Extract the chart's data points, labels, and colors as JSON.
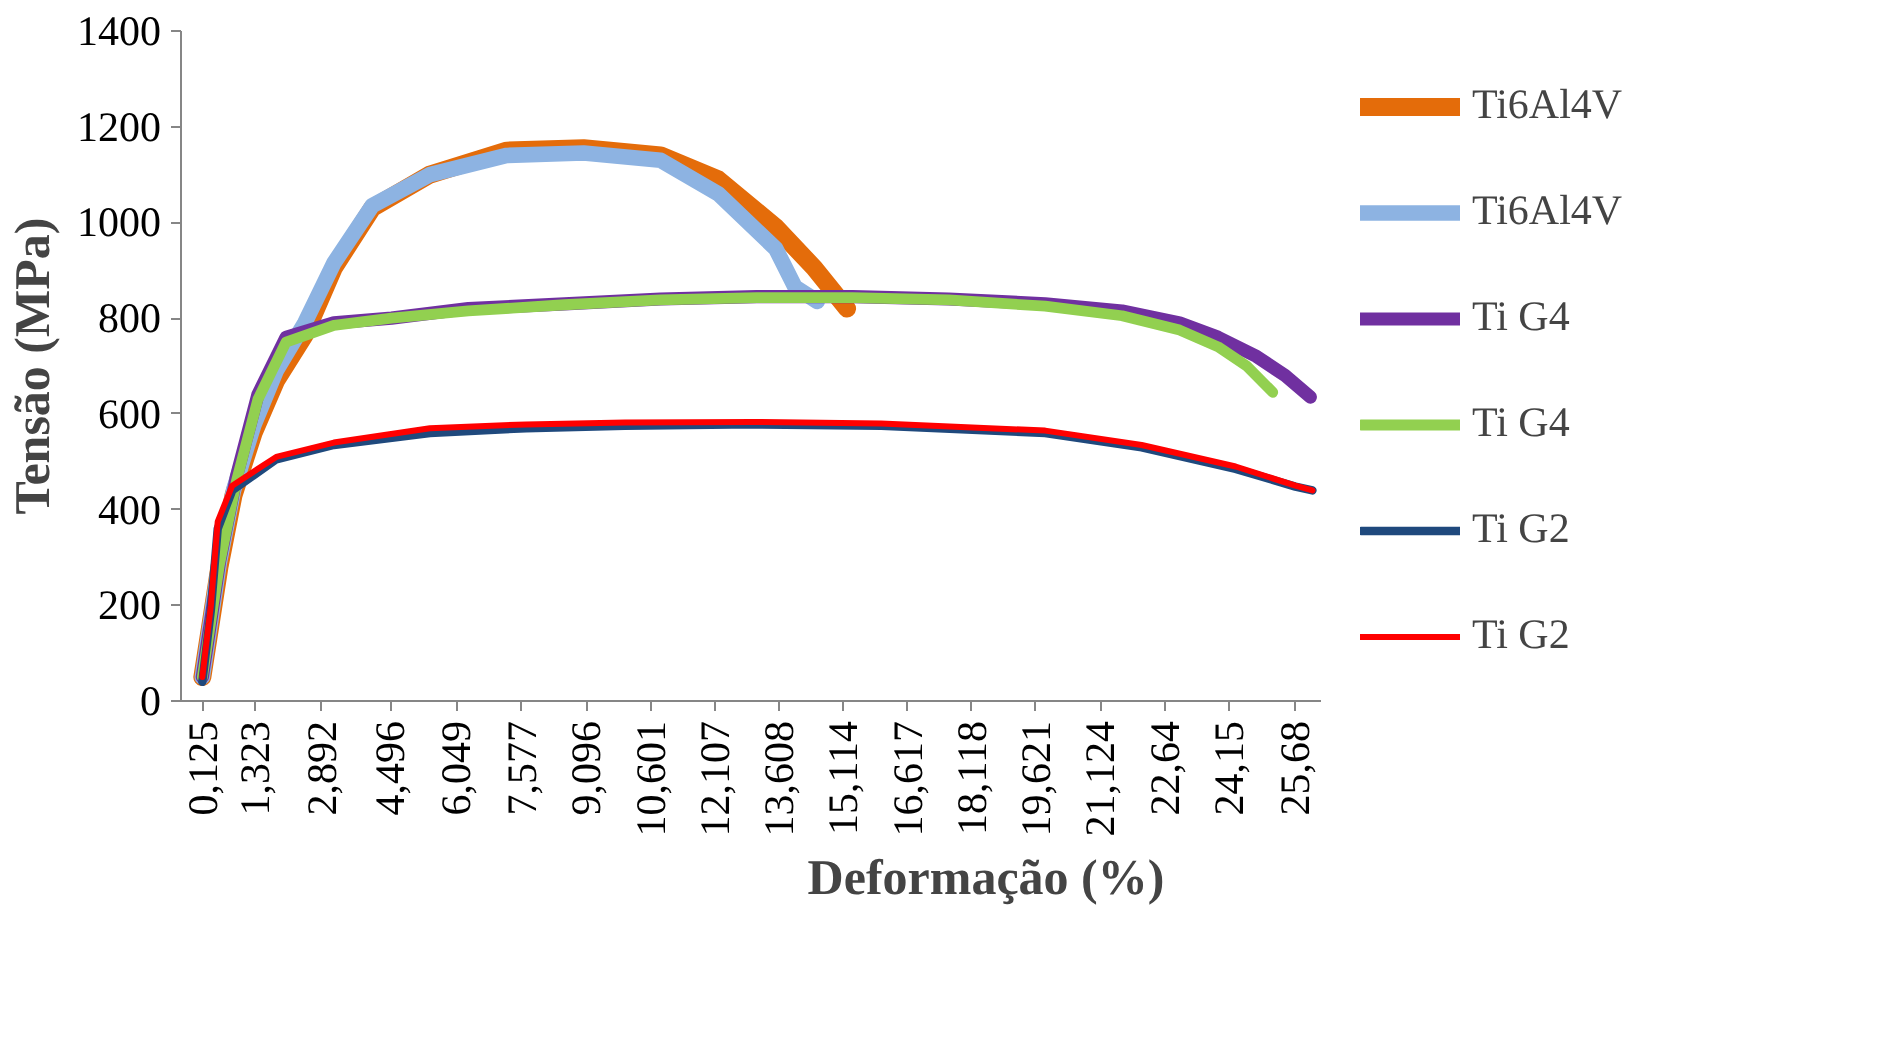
{
  "chart_data": {
    "type": "line",
    "xlabel": "Deformação (%)",
    "ylabel": "Tensão (MPa)",
    "xlim": [
      -0.4,
      26.3
    ],
    "ylim": [
      0,
      1400
    ],
    "xticks": [
      {
        "value": 0.125,
        "label": "0,125"
      },
      {
        "value": 1.323,
        "label": "1,323"
      },
      {
        "value": 2.892,
        "label": "2,892"
      },
      {
        "value": 4.496,
        "label": "4,496"
      },
      {
        "value": 6.049,
        "label": "6,049"
      },
      {
        "value": 7.577,
        "label": "7,577"
      },
      {
        "value": 9.096,
        "label": "9,096"
      },
      {
        "value": 10.601,
        "label": "10,601"
      },
      {
        "value": 12.107,
        "label": "12,107"
      },
      {
        "value": 13.608,
        "label": "13,608"
      },
      {
        "value": 15.114,
        "label": "15,114"
      },
      {
        "value": 16.617,
        "label": "16,617"
      },
      {
        "value": 18.118,
        "label": "18,118"
      },
      {
        "value": 19.621,
        "label": "19,621"
      },
      {
        "value": 21.124,
        "label": "21,124"
      },
      {
        "value": 22.64,
        "label": "22,64"
      },
      {
        "value": 24.15,
        "label": "24,15"
      },
      {
        "value": 25.68,
        "label": "25,68"
      }
    ],
    "yticks": [
      0,
      200,
      400,
      600,
      800,
      1000,
      1200,
      1400
    ],
    "grid": false,
    "legend": "right",
    "marker": "none",
    "line_style": "solid",
    "series": [
      {
        "name": "Ti6Al4V",
        "color": "#e46c0a",
        "x": [
          0.1,
          0.5,
          0.83,
          1.3,
          1.83,
          2.5,
          3.18,
          4.08,
          5.43,
          7.23,
          9.03,
          10.83,
          12.18,
          13.53,
          14.43,
          15.2
        ],
        "values": [
          50,
          280,
          430,
          560,
          670,
          765,
          905,
          1030,
          1100,
          1150,
          1155,
          1140,
          1090,
          990,
          905,
          820
        ]
      },
      {
        "name": "Ti6Al4V",
        "color": "#8db3e2",
        "x": [
          0.1,
          0.5,
          0.83,
          1.3,
          1.83,
          2.5,
          3.18,
          4.08,
          5.43,
          7.23,
          9.03,
          10.83,
          12.18,
          13.53,
          13.98,
          14.5
        ],
        "values": [
          50,
          290,
          440,
          575,
          690,
          790,
          915,
          1035,
          1100,
          1140,
          1145,
          1130,
          1060,
          945,
          865,
          835
        ]
      },
      {
        "name": "Ti G4",
        "color": "#7030a0",
        "x": [
          0.1,
          0.5,
          0.9,
          1.4,
          2.06,
          3.18,
          4.53,
          6.33,
          8.58,
          10.83,
          13.08,
          15.33,
          17.58,
          19.84,
          21.64,
          22.99,
          23.89,
          24.79,
          25.46,
          26.05
        ],
        "values": [
          50,
          290,
          470,
          640,
          760,
          790,
          800,
          820,
          830,
          840,
          845,
          845,
          840,
          830,
          815,
          790,
          760,
          720,
          680,
          635
        ]
      },
      {
        "name": "Ti G4",
        "color": "#92d050",
        "x": [
          0.1,
          0.5,
          0.9,
          1.4,
          2.06,
          3.18,
          4.53,
          6.33,
          8.58,
          10.83,
          13.08,
          15.33,
          17.58,
          19.84,
          21.64,
          22.99,
          23.89,
          24.56,
          25.17
        ],
        "values": [
          50,
          285,
          460,
          630,
          750,
          785,
          800,
          815,
          828,
          838,
          843,
          843,
          838,
          825,
          805,
          775,
          740,
          700,
          645
        ]
      },
      {
        "name": "Ti G2",
        "color": "#1f497d",
        "x": [
          0.1,
          0.3,
          0.46,
          0.8,
          1.83,
          3.18,
          5.43,
          7.68,
          10.0,
          13.0,
          16.0,
          19.84,
          22.1,
          24.3,
          25.7,
          26.1
        ],
        "values": [
          40,
          190,
          360,
          440,
          505,
          535,
          560,
          570,
          575,
          578,
          575,
          560,
          530,
          485,
          448,
          440
        ]
      },
      {
        "name": "Ti G2",
        "color": "#ff0000",
        "x": [
          0.1,
          0.3,
          0.46,
          0.8,
          1.83,
          3.18,
          5.43,
          7.68,
          10.0,
          13.0,
          16.0,
          19.84,
          22.1,
          24.3,
          25.7,
          26.1
        ],
        "values": [
          50,
          200,
          375,
          450,
          510,
          540,
          570,
          578,
          582,
          583,
          580,
          565,
          535,
          490,
          450,
          440
        ]
      }
    ]
  }
}
